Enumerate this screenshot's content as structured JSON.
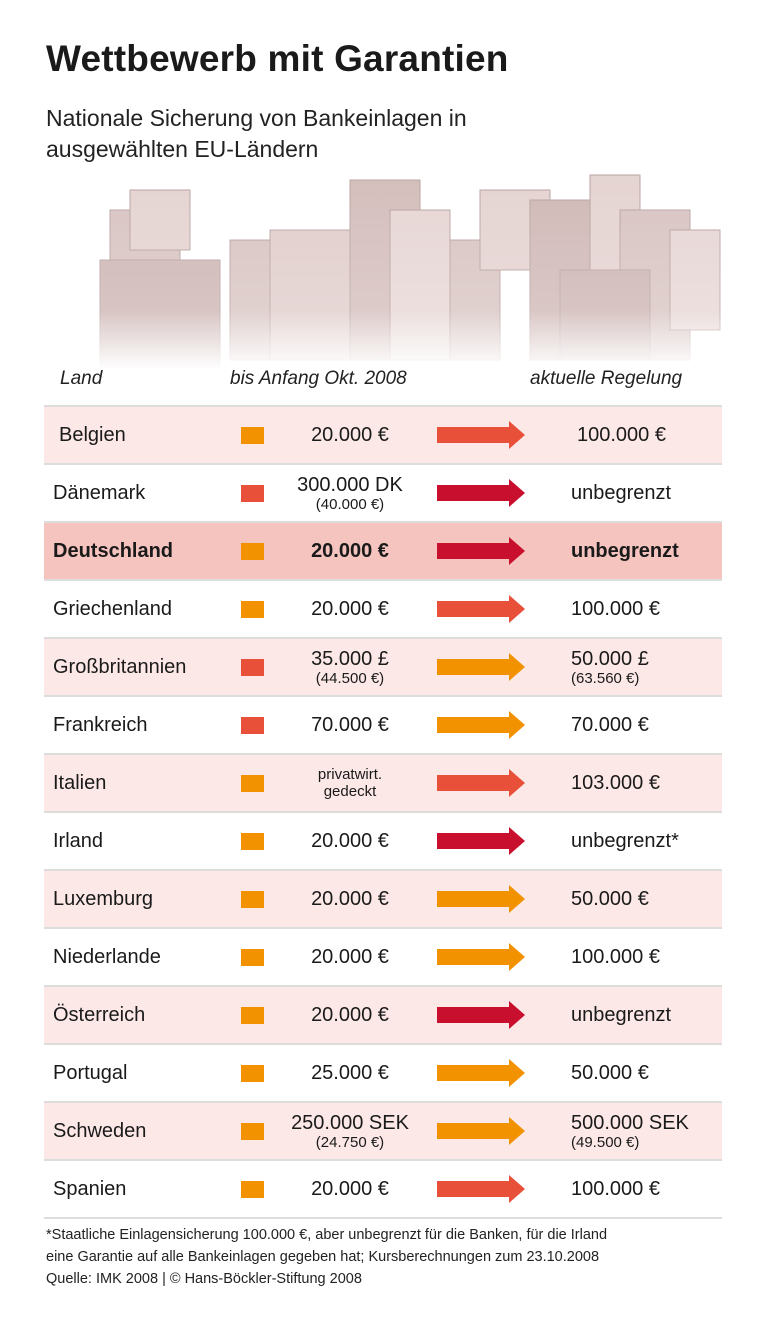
{
  "title": "Wettbewerb mit Garantien",
  "subtitle": "Nationale Sicherung von Bankeinlagen in ausgewählten EU-Ländern",
  "colors": {
    "orange": "#f39200",
    "redorange": "#e8503a",
    "darkred": "#c8102e",
    "row_pink": "#fce8e7",
    "row_highlight": "#f6c4bf"
  },
  "chart_data": {
    "type": "table",
    "columns": [
      "Land",
      "bis Anfang Okt. 2008",
      "aktuelle Regelung"
    ],
    "rows": [
      {
        "land": "Belgien",
        "before": "20.000 €",
        "before_sub": "",
        "square": "orange",
        "arrow": "redorange",
        "after": "100.000 €",
        "after_sub": "",
        "bg": "pink"
      },
      {
        "land": "Dänemark",
        "before": "300.000 DK",
        "before_sub": "(40.000 €)",
        "square": "redorange",
        "arrow": "darkred",
        "after": "unbegrenzt",
        "after_sub": "",
        "bg": "white"
      },
      {
        "land": "Deutschland",
        "before": "20.000 €",
        "before_sub": "",
        "square": "orange",
        "arrow": "darkred",
        "after": "unbegrenzt",
        "after_sub": "",
        "bg": "highlight",
        "bold": true
      },
      {
        "land": "Griechenland",
        "before": "20.000 €",
        "before_sub": "",
        "square": "orange",
        "arrow": "redorange",
        "after": "100.000 €",
        "after_sub": "",
        "bg": "white"
      },
      {
        "land": "Großbritannien",
        "before": "35.000 £",
        "before_sub": "(44.500 €)",
        "square": "redorange",
        "arrow": "orange",
        "after": "50.000 £",
        "after_sub": "(63.560 €)",
        "bg": "pink"
      },
      {
        "land": "Frankreich",
        "before": "70.000 €",
        "before_sub": "",
        "square": "redorange",
        "arrow": "orange",
        "after": "70.000 €",
        "after_sub": "",
        "bg": "white"
      },
      {
        "land": "Italien",
        "before": "privatwirt.",
        "before_sub": "gedeckt",
        "square": "orange",
        "arrow": "redorange",
        "after": "103.000 €",
        "after_sub": "",
        "bg": "pink",
        "before_small": true
      },
      {
        "land": "Irland",
        "before": "20.000 €",
        "before_sub": "",
        "square": "orange",
        "arrow": "darkred",
        "after": "unbegrenzt*",
        "after_sub": "",
        "bg": "white"
      },
      {
        "land": "Luxemburg",
        "before": "20.000 €",
        "before_sub": "",
        "square": "orange",
        "arrow": "orange",
        "after": "50.000 €",
        "after_sub": "",
        "bg": "pink"
      },
      {
        "land": "Niederlande",
        "before": "20.000 €",
        "before_sub": "",
        "square": "orange",
        "arrow": "orange",
        "after": "100.000 €",
        "after_sub": "",
        "bg": "white"
      },
      {
        "land": "Österreich",
        "before": "20.000 €",
        "before_sub": "",
        "square": "orange",
        "arrow": "darkred",
        "after": "unbegrenzt",
        "after_sub": "",
        "bg": "pink"
      },
      {
        "land": "Portugal",
        "before": "25.000 €",
        "before_sub": "",
        "square": "orange",
        "arrow": "orange",
        "after": "50.000 €",
        "after_sub": "",
        "bg": "white"
      },
      {
        "land": "Schweden",
        "before": "250.000 SEK",
        "before_sub": "(24.750 €)",
        "square": "orange",
        "arrow": "orange",
        "after": "500.000 SEK",
        "after_sub": "(49.500 €)",
        "bg": "pink"
      },
      {
        "land": "Spanien",
        "before": "20.000 €",
        "before_sub": "",
        "square": "orange",
        "arrow": "redorange",
        "after": "100.000 €",
        "after_sub": "",
        "bg": "white"
      }
    ]
  },
  "footnote": {
    "line1": "*Staatliche Einlagensicherung 100.000 €, aber unbegrenzt für die Banken, für die Irland",
    "line2": "eine Garantie auf alle Bankeinlagen gegeben hat; Kursberechnungen zum 23.10.2008",
    "source": "Quelle: IMK 2008 | © Hans-Böckler-Stiftung 2008"
  }
}
